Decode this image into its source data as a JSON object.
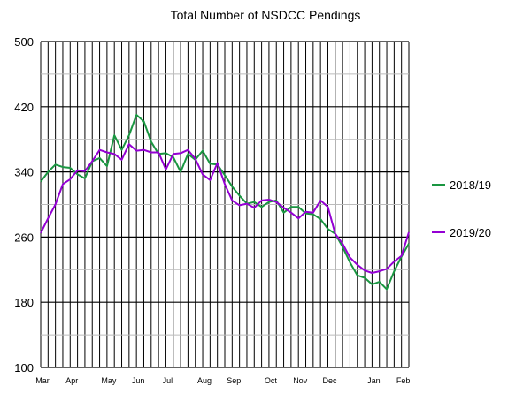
{
  "chart_data": {
    "type": "line",
    "title": "Total Number of NSDCC Pendings",
    "ylim": [
      100,
      500
    ],
    "yticks": [
      100,
      180,
      260,
      340,
      420,
      500
    ],
    "xlim": [
      0,
      50
    ],
    "grid": true,
    "legend_position": "right",
    "x_month_labels": [
      {
        "label": "Mar",
        "x": 0
      },
      {
        "label": "Apr",
        "x": 4
      },
      {
        "label": "May",
        "x": 9
      },
      {
        "label": "Jun",
        "x": 13
      },
      {
        "label": "Jul",
        "x": 17
      },
      {
        "label": "Aug",
        "x": 22
      },
      {
        "label": "Sep",
        "x": 26
      },
      {
        "label": "Oct",
        "x": 31
      },
      {
        "label": "Nov",
        "x": 35
      },
      {
        "label": "Dec",
        "x": 39
      },
      {
        "label": "Jan",
        "x": 45
      },
      {
        "label": "Feb",
        "x": 49
      }
    ],
    "series": [
      {
        "name": "2018/19",
        "color": "#1a9641",
        "values": [
          328,
          340,
          349,
          346,
          345,
          337,
          332,
          353,
          357,
          347,
          385,
          367,
          385,
          410,
          402,
          377,
          362,
          363,
          358,
          340,
          362,
          355,
          366,
          350,
          349,
          336,
          322,
          311,
          301,
          303,
          297,
          303,
          305,
          290,
          297,
          297,
          289,
          288,
          282,
          270,
          264,
          248,
          229,
          213,
          210,
          202,
          205,
          196,
          218,
          236,
          252
        ]
      },
      {
        "name": "2019/20",
        "color": "#9400d3",
        "values": [
          265,
          283,
          300,
          325,
          331,
          342,
          341,
          353,
          367,
          364,
          362,
          355,
          374,
          366,
          367,
          364,
          364,
          343,
          362,
          363,
          367,
          356,
          337,
          330,
          351,
          325,
          305,
          299,
          301,
          296,
          305,
          306,
          303,
          296,
          290,
          283,
          291,
          290,
          305,
          297,
          264,
          252,
          235,
          226,
          219,
          216,
          218,
          221,
          230,
          237,
          266
        ]
      }
    ]
  }
}
